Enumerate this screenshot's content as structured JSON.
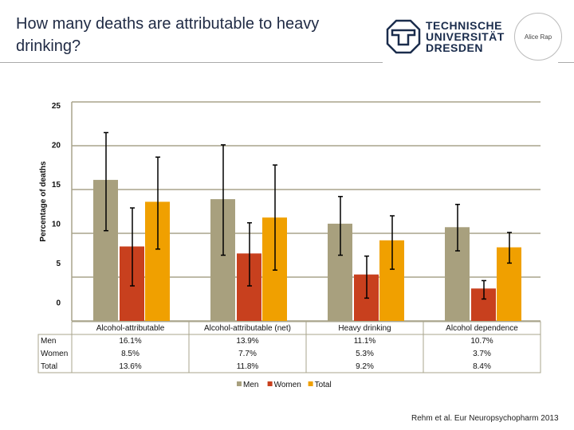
{
  "header": {
    "title": "How many deaths are attributable to heavy drinking?",
    "logo_text": [
      "TECHNISCHE",
      "UNIVERSITÄT",
      "DRESDEN"
    ],
    "partner_logo": "Alice Rap"
  },
  "citation": "Rehm et al. Eur Neuropsychopharm 2013",
  "chart_data": {
    "type": "bar",
    "ylabel": "Percentage of deaths",
    "ylim": [
      0,
      25
    ],
    "yticks": [
      0,
      5,
      10,
      15,
      20,
      25
    ],
    "grid": true,
    "legend_placement": "bottom",
    "categories": [
      "Alcohol-attributable",
      "Alcohol-attributable (net)",
      "Heavy drinking",
      "Alcohol dependence"
    ],
    "series": [
      {
        "name": "Men",
        "color": "#a8a07e",
        "values": [
          16.1,
          13.9,
          11.1,
          10.7
        ],
        "labels": [
          "16.1%",
          "13.9%",
          "11.1%",
          "10.7%"
        ],
        "error_low": [
          10.3,
          7.5,
          7.5,
          8.0
        ],
        "error_high": [
          21.5,
          20.1,
          14.2,
          13.3
        ]
      },
      {
        "name": "Women",
        "color": "#c8401e",
        "values": [
          8.5,
          7.7,
          5.3,
          3.7
        ],
        "labels": [
          "8.5%",
          "7.7%",
          "5.3%",
          "3.7%"
        ],
        "error_low": [
          4.0,
          4.0,
          2.6,
          2.5
        ],
        "error_high": [
          12.9,
          11.2,
          7.4,
          4.6
        ]
      },
      {
        "name": "Total",
        "color": "#f0a000",
        "values": [
          13.6,
          11.8,
          9.2,
          8.4
        ],
        "labels": [
          "13.6%",
          "11.8%",
          "9.2%",
          "8.4%"
        ],
        "error_low": [
          8.2,
          5.8,
          5.9,
          6.6
        ],
        "error_high": [
          18.7,
          17.8,
          12.0,
          10.1
        ]
      }
    ]
  }
}
